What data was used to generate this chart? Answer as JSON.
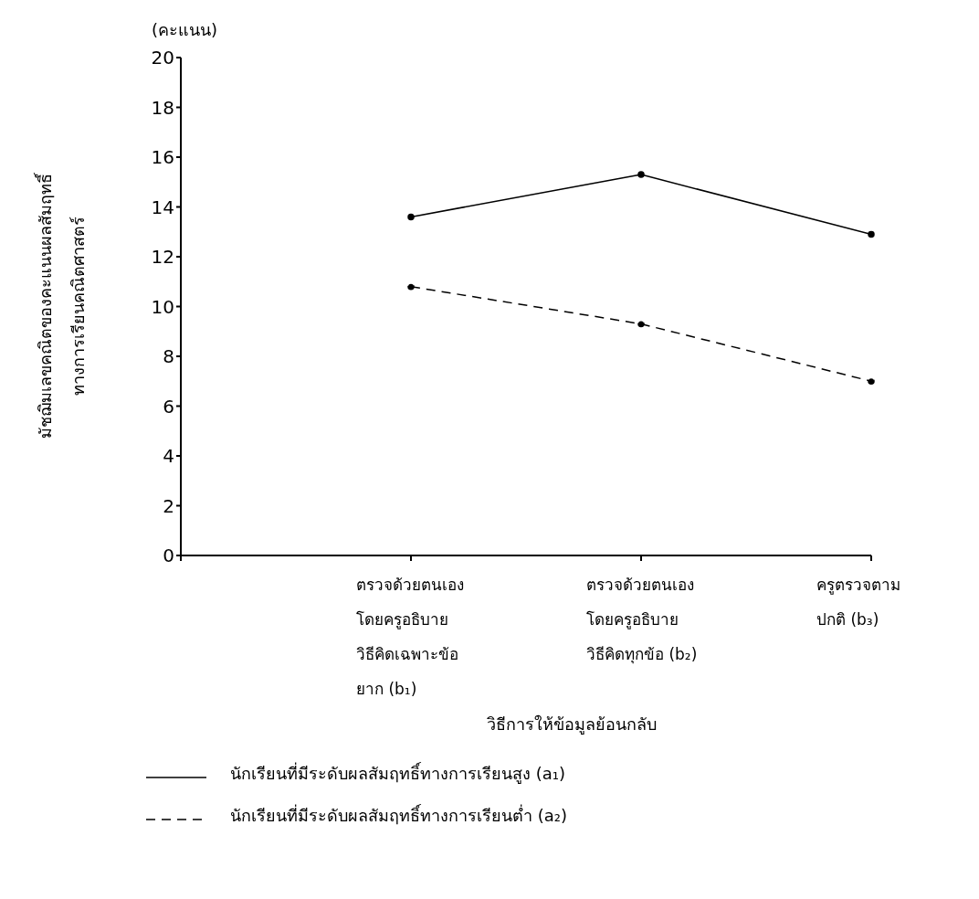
{
  "chart_data": {
    "type": "line",
    "ylabel": "มัชฌิมเลขคณิตของคะแนนผลสัมฤทธิ์\nทางการเรียนคณิตศาสตร์",
    "xlabel": "วิธีการให้ข้อมูลย้อนกลับ",
    "annotations": [
      "(คะแนน)"
    ],
    "categories": [
      null,
      "ตรวจด้วยตนเอง\nโดยครูอธิบาย\nวิธีคิดเฉพาะข้อ\nยาก (b₁)",
      "ตรวจด้วยตนเอง\nโดยครูอธิบาย\nวิธีคิดทุกข้อ (b₂)",
      "ครูตรวจตาม\nปกติ (b₃)"
    ],
    "series": [
      {
        "name": "นักเรียนที่มีระดับผลสัมฤทธิ์ทางการเรียนสูง (a₁)",
        "color": "#000000",
        "line_style": "solid",
        "values": [
          null,
          13.6,
          15.3,
          12.9
        ]
      },
      {
        "name": "นักเรียนที่มีระดับผลสัมฤทธิ์ทางการเรียนต่ำ (a₂)",
        "color": "#000000",
        "line_style": "dashed",
        "values": [
          null,
          10.8,
          9.3,
          7.0
        ]
      }
    ],
    "ylim": [
      0,
      20
    ],
    "yticks": [
      0,
      2,
      4,
      6,
      8,
      10,
      12,
      14,
      16,
      18,
      20
    ],
    "grid": false,
    "legend": "bottom",
    "marker": "circle"
  }
}
